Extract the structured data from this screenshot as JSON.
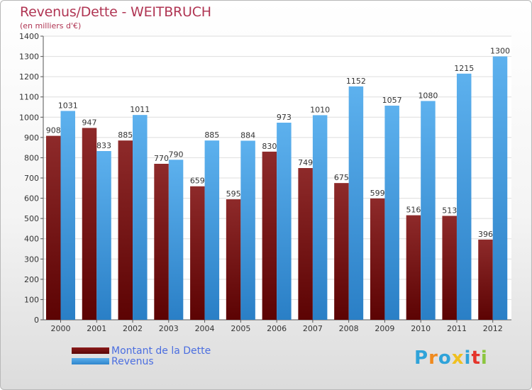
{
  "chart_data": {
    "type": "bar",
    "title": "Revenus/Dette - WEITBRUCH",
    "subtitle": "(en milliers d'€)",
    "categories": [
      "2000",
      "2001",
      "2002",
      "2003",
      "2004",
      "2005",
      "2006",
      "2007",
      "2008",
      "2009",
      "2010",
      "2011",
      "2012"
    ],
    "series": [
      {
        "name": "Montant de la Dette",
        "color": "#7a1515",
        "values": [
          908,
          947,
          885,
          770,
          659,
          595,
          830,
          749,
          675,
          599,
          516,
          513,
          396
        ]
      },
      {
        "name": "Revenus",
        "color": "#4aa3e6",
        "values": [
          1031,
          833,
          1011,
          790,
          885,
          884,
          973,
          1010,
          1152,
          1057,
          1080,
          1215,
          1300
        ]
      }
    ],
    "ylim": [
      0,
      1400
    ],
    "yticks": [
      0,
      100,
      200,
      300,
      400,
      500,
      600,
      700,
      800,
      900,
      1000,
      1100,
      1200,
      1300,
      1400
    ],
    "grid": true,
    "legend_position": "bottom-left"
  },
  "logo": {
    "letters": [
      "P",
      "r",
      "o",
      "x",
      "i",
      "t",
      "i"
    ],
    "colors": [
      "#2fa3d9",
      "#f08a1e",
      "#2fa3d9",
      "#f0c020",
      "#2fa3d9",
      "#e5342a",
      "#8cc63f"
    ]
  }
}
